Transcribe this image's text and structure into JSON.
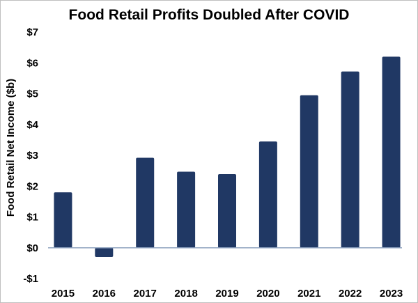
{
  "chart_data": {
    "type": "bar",
    "title": "Food Retail Profits Doubled After COVID",
    "xlabel": "",
    "ylabel": "Food Retail Net Income ($b)",
    "categories": [
      "2015",
      "2016",
      "2017",
      "2018",
      "2019",
      "2020",
      "2021",
      "2022",
      "2023"
    ],
    "values": [
      1.8,
      -0.3,
      2.92,
      2.47,
      2.39,
      3.45,
      4.95,
      5.72,
      6.2
    ],
    "ylim": [
      -1,
      7
    ],
    "yticks": [
      -1,
      0,
      1,
      2,
      3,
      4,
      5,
      6,
      7
    ],
    "ytick_labels": [
      "-$1",
      "$0",
      "$1",
      "$2",
      "$3",
      "$4",
      "$5",
      "$6",
      "$7"
    ],
    "grid": false,
    "legend": "none",
    "colors": {
      "bar": "#203864",
      "zero_line": "#8ea2bf"
    }
  }
}
